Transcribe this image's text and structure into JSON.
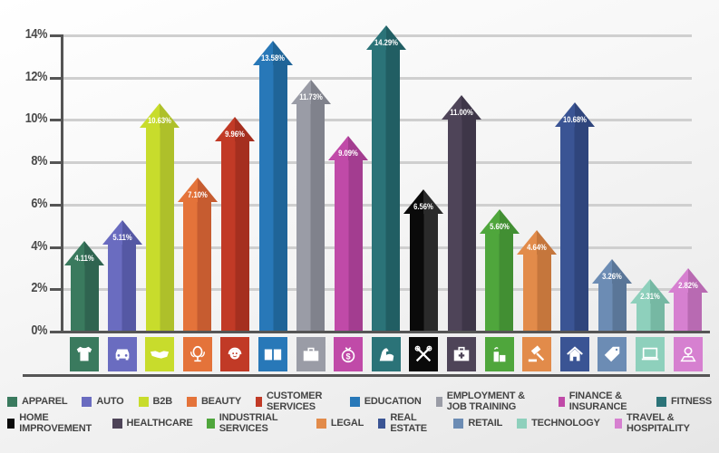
{
  "chart_data": {
    "type": "bar",
    "title": "",
    "xlabel": "",
    "ylabel": "",
    "ylim": [
      0,
      14
    ],
    "y_ticks": [
      "0%",
      "2%",
      "4%",
      "6%",
      "8%",
      "10%",
      "12%",
      "14%"
    ],
    "grid": true,
    "legend_position": "bottom",
    "categories": [
      "APPAREL",
      "AUTO",
      "B2B",
      "BEAUTY",
      "CUSTOMER SERVICES",
      "EDUCATION",
      "EMPLOYMENT & JOB TRAINING",
      "FINANCE & INSURANCE",
      "FITNESS",
      "HOME IMPROVEMENT",
      "HEALTHCARE",
      "INDUSTRIAL SERVICES",
      "LEGAL",
      "REAL ESTATE",
      "RETAIL",
      "TECHNOLOGY",
      "TRAVEL & HOSPITALITY"
    ],
    "values": [
      4.11,
      5.11,
      10.63,
      7.1,
      9.96,
      13.58,
      11.73,
      9.09,
      14.29,
      6.56,
      11.0,
      5.6,
      4.64,
      10.68,
      3.26,
      2.31,
      2.82
    ],
    "value_labels": [
      "4.11%",
      "5.11%",
      "10.63%",
      "7.10%",
      "9.96%",
      "13.58%",
      "11.73%",
      "9.09%",
      "14.29%",
      "6.56%",
      "11.00%",
      "5.60%",
      "4.64%",
      "10.68%",
      "3.26%",
      "2.31%",
      "2.82%"
    ],
    "colors": [
      "#3a7a5e",
      "#6a6cc0",
      "#c8dc2c",
      "#e4733a",
      "#c13a26",
      "#2878b8",
      "#9a9ca6",
      "#c04aa8",
      "#2b7378",
      "#0a0a0a",
      "#4e4458",
      "#4fa63c",
      "#e28b4a",
      "#3a5494",
      "#6c8cb4",
      "#8ed0bc",
      "#d680d0"
    ],
    "dark_colors": [
      "#2f6450",
      "#5558a4",
      "#aec02a",
      "#c65c30",
      "#a52f1f",
      "#1f6498",
      "#80828c",
      "#a33d90",
      "#215e63",
      "#2a2a2a",
      "#3e3648",
      "#428f33",
      "#c5763c",
      "#2f457c",
      "#5a7698",
      "#76b8a3",
      "#b86ab2"
    ],
    "icons": [
      "tshirt-icon",
      "car-icon",
      "handshake-icon",
      "mirror-icon",
      "headset-icon",
      "book-icon",
      "briefcase-icon",
      "money-bag-icon",
      "flexed-arm-icon",
      "tools-icon",
      "first-aid-kit-icon",
      "factory-icon",
      "gavel-icon",
      "house-icon",
      "price-tag-icon",
      "laptop-icon",
      "map-pin-icon"
    ]
  },
  "legend": {
    "row1": [
      0,
      1,
      2,
      3,
      4,
      5,
      6,
      7,
      8
    ],
    "row2": [
      9,
      10,
      11,
      12,
      13,
      14,
      15,
      16
    ]
  }
}
